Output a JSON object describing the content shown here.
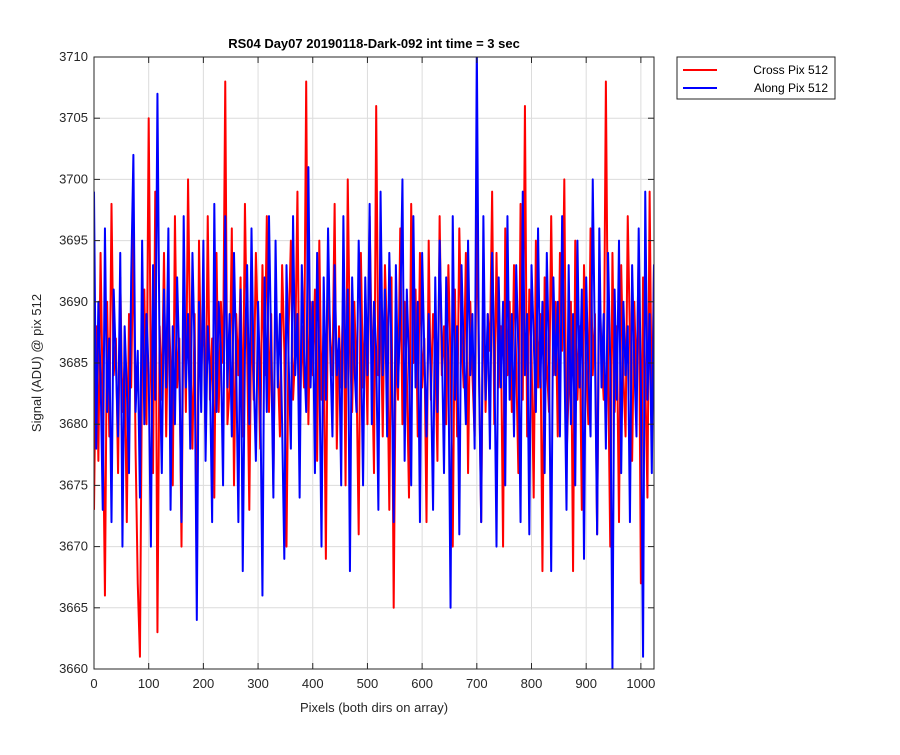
{
  "chart_data": {
    "type": "line",
    "title": "RS04 Day07 20190118-Dark-092 int time = 3 sec",
    "xlabel": "Pixels (both dirs on array)",
    "ylabel": "Signal (ADU) @ pix 512",
    "xlim": [
      0,
      1024
    ],
    "ylim": [
      3660,
      3710
    ],
    "x_ticks": [
      0,
      100,
      200,
      300,
      400,
      500,
      600,
      700,
      800,
      900,
      1000
    ],
    "y_ticks": [
      3660,
      3665,
      3670,
      3675,
      3680,
      3685,
      3690,
      3695,
      3700,
      3705,
      3710
    ],
    "grid": true,
    "legend_position": "outside-top-right",
    "series": [
      {
        "name": "Cross Pix 512",
        "color": "#ff0000",
        "x_step": 4,
        "values": [
          3673,
          3688,
          3677,
          3694,
          3682,
          3666,
          3690,
          3679,
          3698,
          3684,
          3687,
          3676,
          3692,
          3681,
          3685,
          3672,
          3689,
          3683,
          3696,
          3678,
          3667,
          3661,
          3686,
          3691,
          3680,
          3705,
          3684,
          3676,
          3699,
          3663,
          3688,
          3682,
          3694,
          3679,
          3690,
          3685,
          3675,
          3697,
          3683,
          3687,
          3670,
          3692,
          3681,
          3700,
          3686,
          3678,
          3689,
          3667,
          3695,
          3684,
          3690,
          3679,
          3697,
          3682,
          3687,
          3674,
          3694,
          3681,
          3690,
          3685,
          3708,
          3680,
          3683,
          3696,
          3675,
          3689,
          3684,
          3692,
          3679,
          3698,
          3686,
          3673,
          3690,
          3682,
          3694,
          3687,
          3678,
          3693,
          3684,
          3697,
          3681,
          3689,
          3675,
          3692,
          3685,
          3679,
          3693,
          3686,
          3670,
          3688,
          3695,
          3682,
          3686,
          3699,
          3679,
          3688,
          3683,
          3708,
          3680,
          3690,
          3684,
          3691,
          3677,
          3695,
          3682,
          3688,
          3669,
          3693,
          3687,
          3684,
          3698,
          3678,
          3688,
          3683,
          3692,
          3675,
          3700,
          3686,
          3681,
          3690,
          3684,
          3671,
          3694,
          3683,
          3689,
          3680,
          3697,
          3686,
          3676,
          3706,
          3684,
          3690,
          3679,
          3693,
          3687,
          3673,
          3692,
          3665,
          3687,
          3682,
          3696,
          3680,
          3690,
          3684,
          3674,
          3698,
          3685,
          3691,
          3679,
          3694,
          3683,
          3687,
          3672,
          3695,
          3682,
          3689,
          3686,
          3677,
          3697,
          3684,
          3688,
          3680,
          3693,
          3685,
          3670,
          3691,
          3679,
          3696,
          3687,
          3683,
          3694,
          3676,
          3690,
          3684,
          3679,
          3697,
          3685,
          3672,
          3692,
          3681,
          3689,
          3686,
          3699,
          3680,
          3694,
          3683,
          3688,
          3670,
          3696,
          3684,
          3690,
          3681,
          3693,
          3685,
          3676,
          3698,
          3682,
          3706,
          3679,
          3691,
          3686,
          3674,
          3695,
          3683,
          3689,
          3668,
          3692,
          3685,
          3681,
          3697,
          3684,
          3690,
          3679,
          3694,
          3686,
          3700,
          3677,
          3683,
          3690,
          3668,
          3695,
          3682,
          3688,
          3673,
          3693,
          3685,
          3680,
          3696,
          3684,
          3689,
          3671,
          3692,
          3686,
          3682,
          3708,
          3685,
          3670,
          3694,
          3681,
          3688,
          3672,
          3693,
          3684,
          3679,
          3697,
          3687,
          3677,
          3690,
          3683,
          3694,
          3667,
          3692,
          3684,
          3674,
          3699,
          3680,
          3693,
          3686,
          3691,
          3678
        ]
      },
      {
        "name": "Along Pix 512",
        "color": "#0000ff",
        "x_step": 4,
        "values": [
          3699,
          3678,
          3690,
          3684,
          3673,
          3696,
          3681,
          3687,
          3672,
          3691,
          3685,
          3679,
          3694,
          3670,
          3688,
          3683,
          3676,
          3692,
          3702,
          3681,
          3686,
          3674,
          3695,
          3680,
          3689,
          3684,
          3670,
          3693,
          3682,
          3707,
          3685,
          3676,
          3691,
          3683,
          3696,
          3673,
          3688,
          3680,
          3692,
          3685,
          3672,
          3697,
          3683,
          3689,
          3678,
          3694,
          3686,
          3664,
          3690,
          3681,
          3695,
          3677,
          3688,
          3684,
          3672,
          3698,
          3681,
          3690,
          3686,
          3675,
          3697,
          3683,
          3689,
          3679,
          3694,
          3685,
          3672,
          3691,
          3668,
          3686,
          3693,
          3680,
          3696,
          3684,
          3677,
          3690,
          3683,
          3666,
          3692,
          3681,
          3697,
          3686,
          3674,
          3695,
          3683,
          3689,
          3680,
          3669,
          3693,
          3685,
          3678,
          3697,
          3684,
          3689,
          3674,
          3693,
          3686,
          3681,
          3701,
          3683,
          3690,
          3676,
          3694,
          3685,
          3670,
          3692,
          3682,
          3696,
          3686,
          3679,
          3693,
          3684,
          3687,
          3675,
          3697,
          3683,
          3691,
          3668,
          3692,
          3685,
          3681,
          3695,
          3687,
          3675,
          3692,
          3684,
          3698,
          3680,
          3690,
          3686,
          3673,
          3699,
          3684,
          3691,
          3679,
          3694,
          3686,
          3672,
          3693,
          3683,
          3689,
          3700,
          3677,
          3691,
          3685,
          3675,
          3697,
          3683,
          3690,
          3672,
          3694,
          3686,
          3679,
          3689,
          3684,
          3673,
          3692,
          3681,
          3695,
          3687,
          3676,
          3692,
          3685,
          3665,
          3697,
          3682,
          3688,
          3671,
          3693,
          3686,
          3680,
          3695,
          3684,
          3689,
          3678,
          3711,
          3684,
          3672,
          3697,
          3682,
          3689,
          3678,
          3694,
          3686,
          3670,
          3692,
          3683,
          3690,
          3675,
          3697,
          3682,
          3689,
          3679,
          3693,
          3686,
          3672,
          3699,
          3684,
          3689,
          3671,
          3693,
          3687,
          3681,
          3696,
          3683,
          3690,
          3676,
          3694,
          3685,
          3668,
          3692,
          3684,
          3690,
          3679,
          3697,
          3686,
          3673,
          3693,
          3680,
          3689,
          3675,
          3695,
          3683,
          3691,
          3669,
          3692,
          3684,
          3679,
          3700,
          3686,
          3671,
          3696,
          3683,
          3689,
          3678,
          3694,
          3685,
          3660,
          3691,
          3682,
          3695,
          3676,
          3690,
          3684,
          3688,
          3672,
          3693,
          3685,
          3679,
          3696,
          3683,
          3661,
          3699,
          3682,
          3689,
          3676,
          3693,
          3684,
          3681,
          3691,
          3679,
          3686,
          3691,
          3683,
          3678,
          3690
        ]
      }
    ]
  }
}
